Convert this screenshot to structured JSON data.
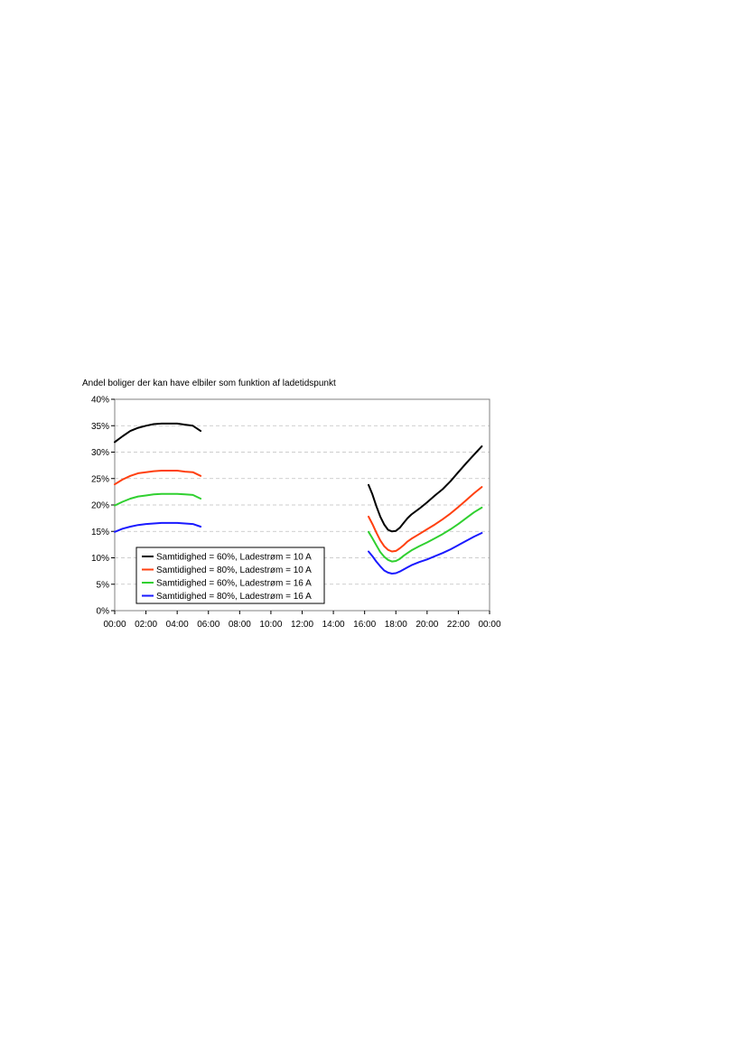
{
  "chart_data": {
    "type": "line",
    "title": "Andel boliger der kan have elbiler som funktion af ladetidspunkt",
    "xlabel": "",
    "ylabel": "",
    "x_ticks": [
      "00:00",
      "02:00",
      "04:00",
      "06:00",
      "08:00",
      "10:00",
      "12:00",
      "14:00",
      "16:00",
      "18:00",
      "20:00",
      "22:00",
      "00:00"
    ],
    "y_ticks": [
      "0%",
      "5%",
      "10%",
      "15%",
      "20%",
      "25%",
      "30%",
      "35%",
      "40%"
    ],
    "xlim_hours": [
      0,
      24
    ],
    "ylim_percent": [
      0,
      40
    ],
    "grid": "horizontal dashed",
    "legend_position": "bottom-left inside plot",
    "series": [
      {
        "name": "Samtidighed = 60%, Ladestrøm = 10 A",
        "color": "#000000",
        "segments": [
          [
            [
              0.0,
              31.9
            ],
            [
              0.5,
              33.0
            ],
            [
              1.0,
              34.0
            ],
            [
              1.5,
              34.6
            ],
            [
              2.0,
              35.0
            ],
            [
              2.5,
              35.3
            ],
            [
              3.0,
              35.4
            ],
            [
              3.5,
              35.4
            ],
            [
              4.0,
              35.4
            ],
            [
              4.5,
              35.2
            ],
            [
              5.0,
              35.0
            ],
            [
              5.5,
              34.0
            ]
          ],
          [
            [
              16.25,
              23.8
            ],
            [
              16.5,
              22.0
            ],
            [
              16.75,
              19.8
            ],
            [
              17.0,
              17.8
            ],
            [
              17.25,
              16.3
            ],
            [
              17.5,
              15.3
            ],
            [
              17.75,
              15.0
            ],
            [
              18.0,
              15.1
            ],
            [
              18.25,
              15.7
            ],
            [
              18.5,
              16.6
            ],
            [
              18.75,
              17.5
            ],
            [
              19.0,
              18.2
            ],
            [
              19.5,
              19.3
            ],
            [
              20.0,
              20.5
            ],
            [
              20.5,
              21.8
            ],
            [
              21.0,
              23.0
            ],
            [
              21.5,
              24.5
            ],
            [
              22.0,
              26.2
            ],
            [
              22.5,
              27.9
            ],
            [
              23.0,
              29.5
            ],
            [
              23.5,
              31.1
            ]
          ]
        ]
      },
      {
        "name": "Samtidighed = 80%, Ladestrøm = 10 A",
        "color": "#ff4010",
        "segments": [
          [
            [
              0.0,
              23.9
            ],
            [
              0.5,
              24.8
            ],
            [
              1.0,
              25.5
            ],
            [
              1.5,
              26.0
            ],
            [
              2.0,
              26.2
            ],
            [
              2.5,
              26.4
            ],
            [
              3.0,
              26.5
            ],
            [
              3.5,
              26.5
            ],
            [
              4.0,
              26.5
            ],
            [
              4.5,
              26.3
            ],
            [
              5.0,
              26.2
            ],
            [
              5.5,
              25.5
            ]
          ],
          [
            [
              16.25,
              17.8
            ],
            [
              16.5,
              16.4
            ],
            [
              16.75,
              14.8
            ],
            [
              17.0,
              13.3
            ],
            [
              17.25,
              12.2
            ],
            [
              17.5,
              11.5
            ],
            [
              17.75,
              11.2
            ],
            [
              18.0,
              11.3
            ],
            [
              18.25,
              11.8
            ],
            [
              18.5,
              12.4
            ],
            [
              18.75,
              13.1
            ],
            [
              19.0,
              13.6
            ],
            [
              19.5,
              14.5
            ],
            [
              20.0,
              15.4
            ],
            [
              20.5,
              16.3
            ],
            [
              21.0,
              17.3
            ],
            [
              21.5,
              18.4
            ],
            [
              22.0,
              19.6
            ],
            [
              22.5,
              20.9
            ],
            [
              23.0,
              22.2
            ],
            [
              23.5,
              23.4
            ]
          ]
        ]
      },
      {
        "name": "Samtidighed = 60%, Ladestrøm = 16 A",
        "color": "#30d030",
        "segments": [
          [
            [
              0.0,
              19.9
            ],
            [
              0.5,
              20.6
            ],
            [
              1.0,
              21.2
            ],
            [
              1.5,
              21.6
            ],
            [
              2.0,
              21.8
            ],
            [
              2.5,
              22.0
            ],
            [
              3.0,
              22.1
            ],
            [
              3.5,
              22.1
            ],
            [
              4.0,
              22.1
            ],
            [
              4.5,
              22.0
            ],
            [
              5.0,
              21.9
            ],
            [
              5.5,
              21.2
            ]
          ],
          [
            [
              16.25,
              14.9
            ],
            [
              16.5,
              13.7
            ],
            [
              16.75,
              12.4
            ],
            [
              17.0,
              11.1
            ],
            [
              17.25,
              10.2
            ],
            [
              17.5,
              9.6
            ],
            [
              17.75,
              9.3
            ],
            [
              18.0,
              9.4
            ],
            [
              18.25,
              9.8
            ],
            [
              18.5,
              10.4
            ],
            [
              18.75,
              10.9
            ],
            [
              19.0,
              11.4
            ],
            [
              19.5,
              12.2
            ],
            [
              20.0,
              12.9
            ],
            [
              20.5,
              13.7
            ],
            [
              21.0,
              14.5
            ],
            [
              21.5,
              15.4
            ],
            [
              22.0,
              16.4
            ],
            [
              22.5,
              17.5
            ],
            [
              23.0,
              18.6
            ],
            [
              23.5,
              19.5
            ]
          ]
        ]
      },
      {
        "name": "Samtidighed = 80%, Ladestrøm = 16 A",
        "color": "#1a1aff",
        "segments": [
          [
            [
              0.0,
              14.9
            ],
            [
              0.5,
              15.5
            ],
            [
              1.0,
              15.9
            ],
            [
              1.5,
              16.2
            ],
            [
              2.0,
              16.4
            ],
            [
              2.5,
              16.5
            ],
            [
              3.0,
              16.6
            ],
            [
              3.5,
              16.6
            ],
            [
              4.0,
              16.6
            ],
            [
              4.5,
              16.5
            ],
            [
              5.0,
              16.4
            ],
            [
              5.5,
              15.9
            ]
          ],
          [
            [
              16.25,
              11.2
            ],
            [
              16.5,
              10.3
            ],
            [
              16.75,
              9.3
            ],
            [
              17.0,
              8.4
            ],
            [
              17.25,
              7.6
            ],
            [
              17.5,
              7.2
            ],
            [
              17.75,
              7.0
            ],
            [
              18.0,
              7.1
            ],
            [
              18.25,
              7.4
            ],
            [
              18.5,
              7.8
            ],
            [
              18.75,
              8.2
            ],
            [
              19.0,
              8.6
            ],
            [
              19.5,
              9.2
            ],
            [
              20.0,
              9.7
            ],
            [
              20.5,
              10.3
            ],
            [
              21.0,
              10.9
            ],
            [
              21.5,
              11.6
            ],
            [
              22.0,
              12.4
            ],
            [
              22.5,
              13.2
            ],
            [
              23.0,
              14.0
            ],
            [
              23.5,
              14.7
            ]
          ]
        ]
      }
    ]
  }
}
